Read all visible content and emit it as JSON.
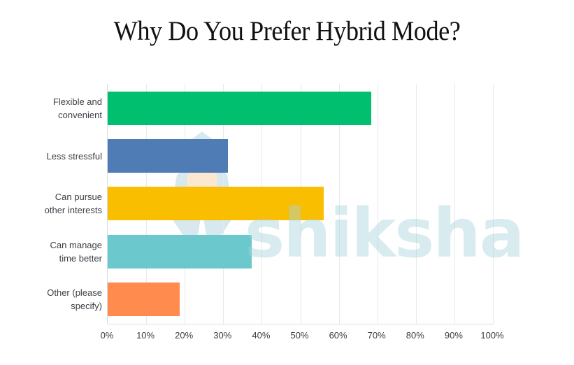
{
  "title": "Why Do You Prefer Hybrid Mode?",
  "watermark": "shiksha",
  "chart_data": {
    "type": "bar",
    "orientation": "horizontal",
    "title": "Why Do You Prefer Hybrid Mode?",
    "xlabel": "",
    "ylabel": "",
    "xlim": [
      0,
      100
    ],
    "grid": true,
    "legend": null,
    "categories": [
      "Flexible and convenient",
      "Less stressful",
      "Can pursue other interests",
      "Can manage time better",
      "Other (please specify)"
    ],
    "category_lines": [
      [
        "Flexible and",
        "convenient"
      ],
      [
        "Less stressful"
      ],
      [
        "Can pursue",
        "other interests"
      ],
      [
        "Can manage",
        "time better"
      ],
      [
        "Other (please",
        "specify)"
      ]
    ],
    "values": [
      68.4,
      31.2,
      56.1,
      37.4,
      18.7
    ],
    "colors": [
      "#00bf6f",
      "#507cb6",
      "#f9be00",
      "#6bc8cd",
      "#ff8b4f"
    ],
    "x_ticks": [
      "0%",
      "10%",
      "20%",
      "30%",
      "40%",
      "50%",
      "60%",
      "70%",
      "80%",
      "90%",
      "100%"
    ]
  }
}
